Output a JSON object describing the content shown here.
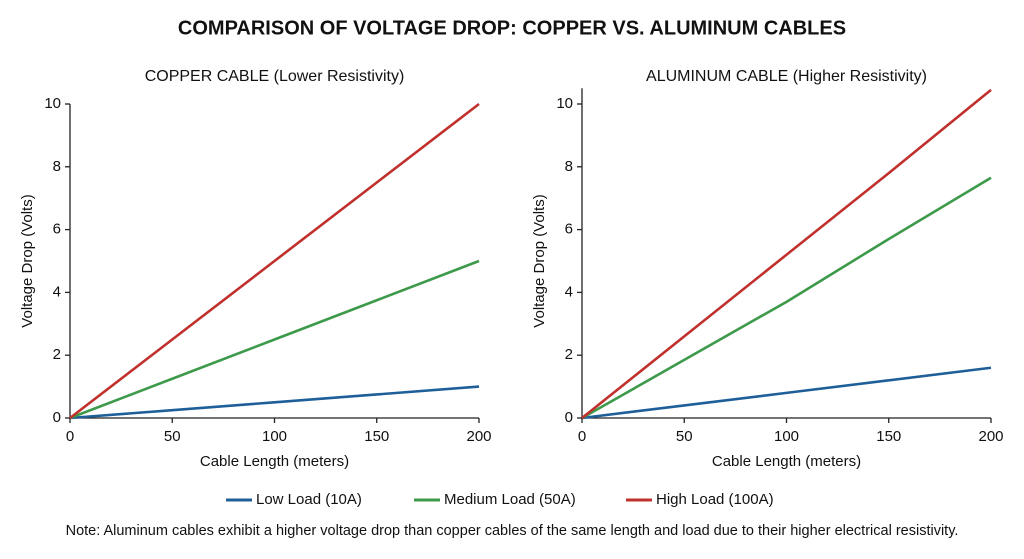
{
  "title": "COMPARISON OF VOLTAGE DROP: COPPER VS. ALUMINUM CABLES",
  "note": "Note: Aluminum cables exhibit a higher voltage drop than copper cables of the same length and load due to their higher electrical resistivity.",
  "chart_data": [
    {
      "type": "line",
      "title": "COPPER CABLE (Lower Resistivity)",
      "x_label": "Cable Length (meters)",
      "y_label": "Voltage Drop (Volts)",
      "x": [
        0,
        50,
        100,
        150,
        200
      ],
      "series": [
        {
          "name": "Low Load (10A)",
          "color": "#1f5f99",
          "values": [
            0,
            0.25,
            0.5,
            0.75,
            1
          ]
        },
        {
          "name": "Medium Load (50A)",
          "color": "#3d9a4a",
          "values": [
            0,
            1.25,
            2.5,
            3.75,
            5
          ]
        },
        {
          "name": "High Load (100A)",
          "color": "#c0302c",
          "values": [
            0,
            2.5,
            5,
            7.5,
            10
          ]
        }
      ],
      "xlim": [
        0,
        200
      ],
      "xticks": [
        0,
        50,
        100,
        150,
        200
      ],
      "ylim": [
        0,
        10
      ],
      "yticks": [
        0,
        2,
        4,
        6,
        8,
        10
      ]
    },
    {
      "type": "line",
      "title": "ALUMINUM CABLE (Higher Resistivity)",
      "x_label": "Cable Length (meters)",
      "y_label": "Voltage Drop (Volts)",
      "x": [
        0,
        50,
        100,
        150,
        200
      ],
      "series": [
        {
          "name": "Low Load (10A)",
          "color": "#1f5f99",
          "values": [
            0,
            0.4,
            0.8,
            1.2,
            1.6
          ]
        },
        {
          "name": "Medium Load (50A)",
          "color": "#3d9a4a",
          "values": [
            0,
            1.85,
            3.7,
            5.7,
            7.65
          ]
        },
        {
          "name": "High Load (100A)",
          "color": "#c0302c",
          "values": [
            0,
            2.6,
            5.2,
            7.8,
            10.45
          ]
        }
      ],
      "xlim": [
        0,
        200
      ],
      "xticks": [
        0,
        50,
        100,
        150,
        200
      ],
      "ylim": [
        0,
        10.5
      ],
      "yticks": [
        0,
        2,
        4,
        6,
        8,
        10
      ]
    }
  ]
}
